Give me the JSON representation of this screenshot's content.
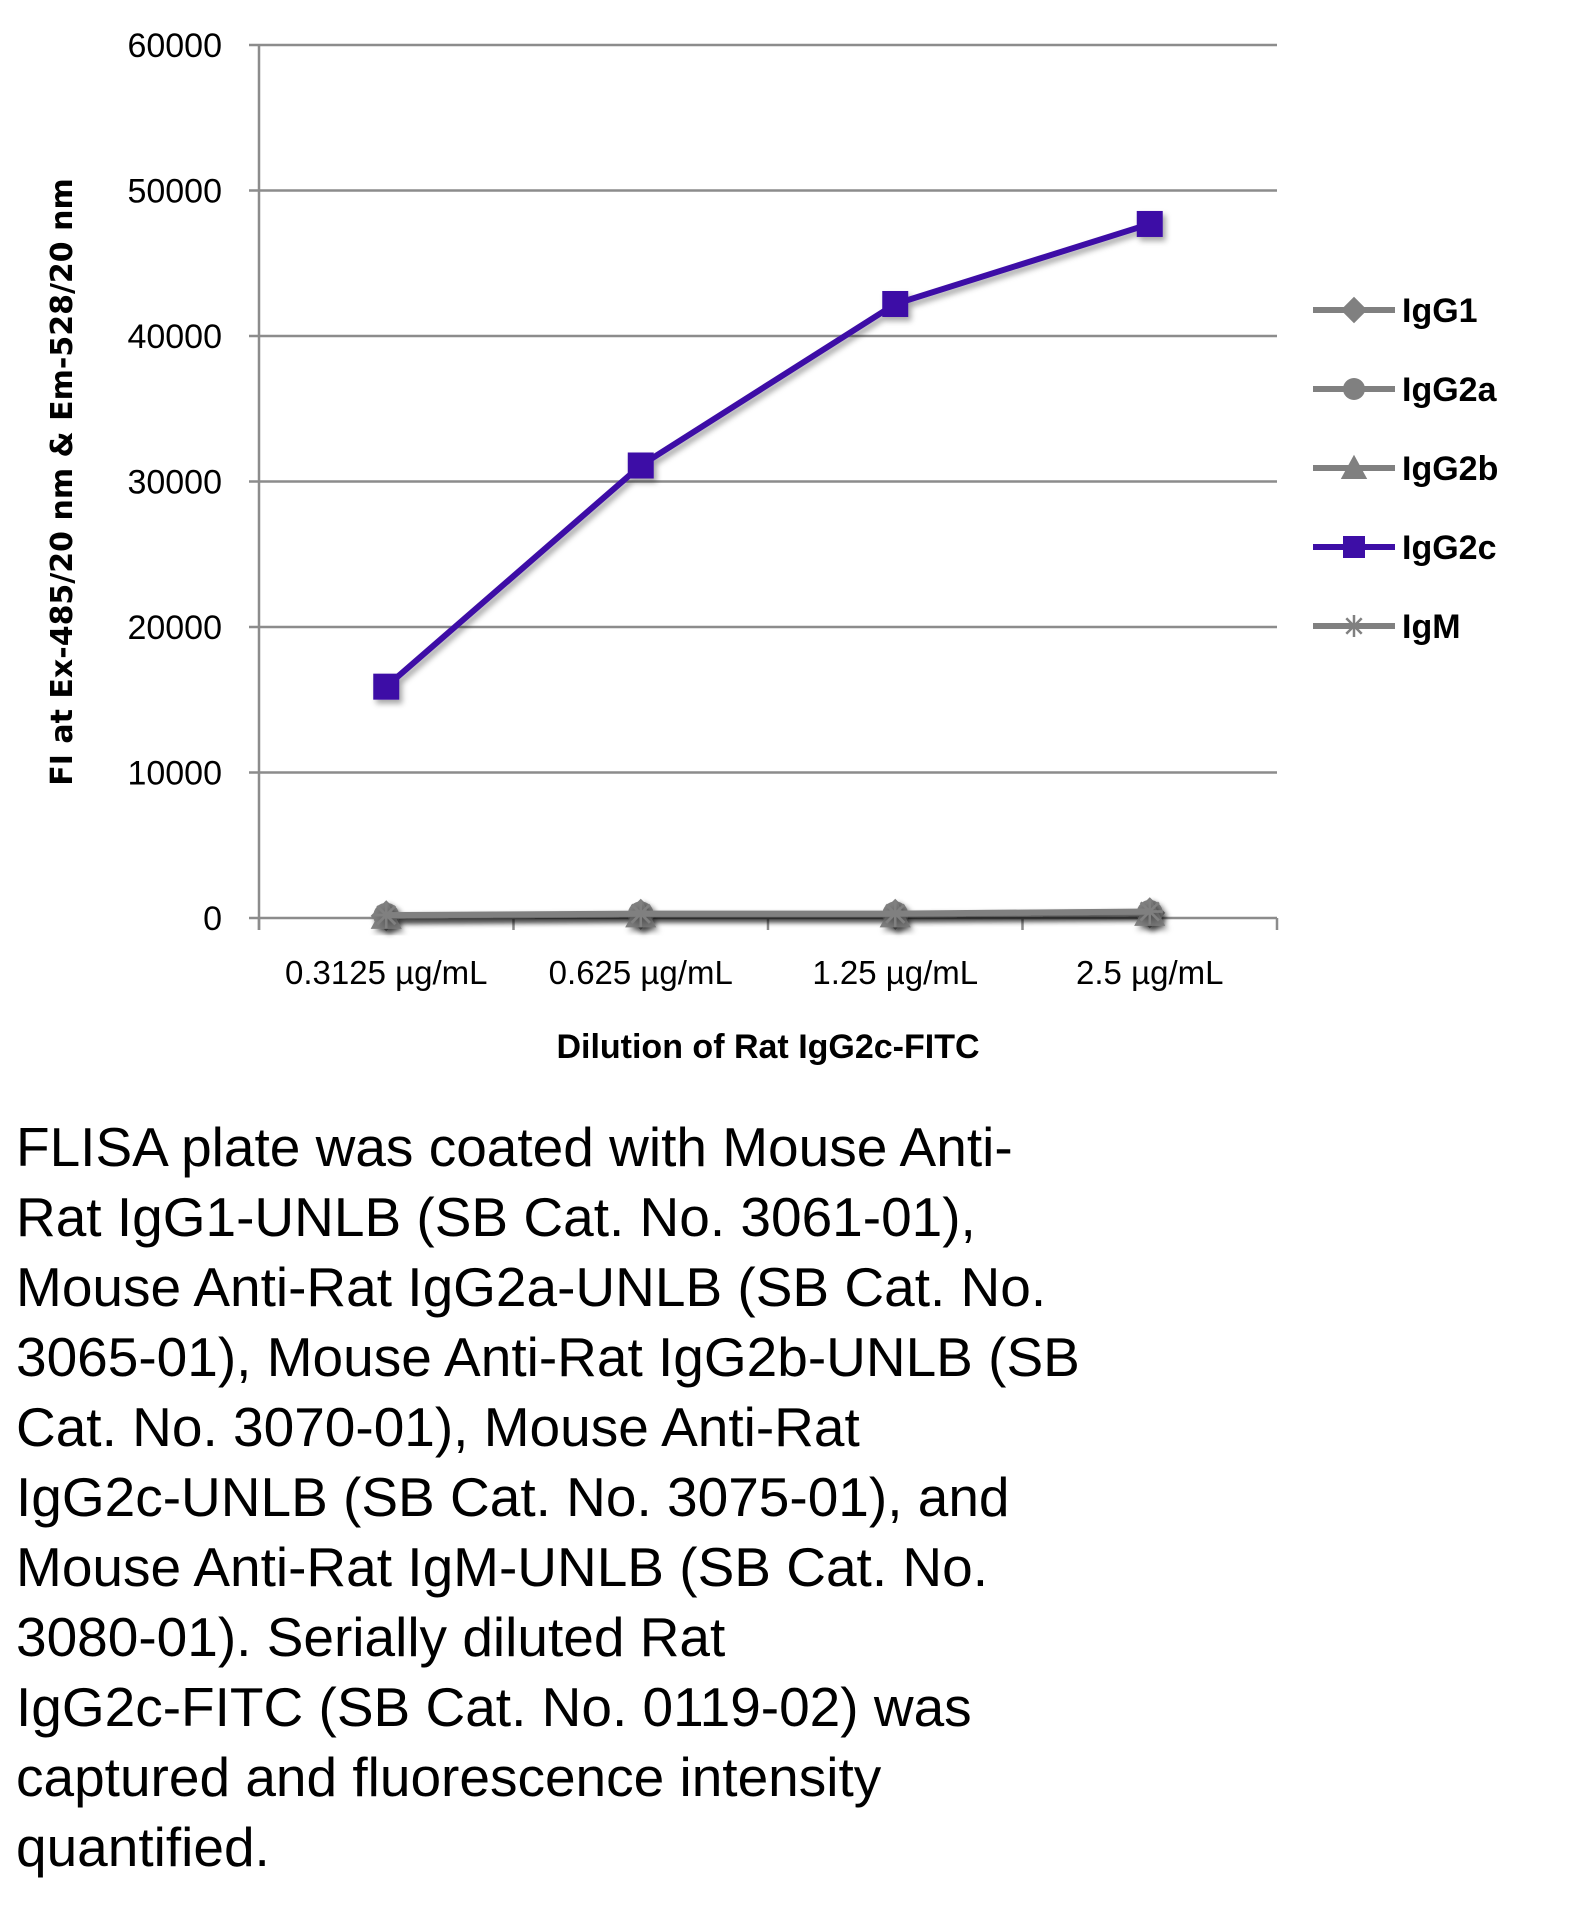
{
  "chart_data": {
    "type": "line",
    "title": "",
    "xlabel": "Dilution of Rat IgG2c-FITC",
    "ylabel": "FI at Ex-485/20 nm & Em-528/20 nm",
    "categories": [
      "0.3125 µg/mL",
      "0.625 µg/mL",
      "1.25 µg/mL",
      "2.5 µg/mL"
    ],
    "ylim": [
      0,
      60000
    ],
    "yticks": [
      0,
      10000,
      20000,
      30000,
      40000,
      50000,
      60000
    ],
    "grid": true,
    "legend_position": "right",
    "series": [
      {
        "name": "IgG1",
        "marker": "diamond",
        "color": "#808080",
        "values": [
          150,
          250,
          250,
          350
        ]
      },
      {
        "name": "IgG2a",
        "marker": "circle",
        "color": "#808080",
        "values": [
          150,
          250,
          250,
          350
        ]
      },
      {
        "name": "IgG2b",
        "marker": "triangle",
        "color": "#808080",
        "values": [
          150,
          250,
          250,
          350
        ]
      },
      {
        "name": "IgG2c",
        "marker": "square",
        "color": "#3d0ea6",
        "values": [
          15900,
          31100,
          42200,
          47700
        ]
      },
      {
        "name": "IgM",
        "marker": "star",
        "color": "#808080",
        "values": [
          200,
          300,
          300,
          450
        ]
      }
    ]
  },
  "caption_lines": [
    "FLISA plate was coated with Mouse Anti-",
    "Rat IgG1-UNLB (SB Cat. No. 3061-01),",
    "Mouse Anti-Rat IgG2a-UNLB (SB Cat. No.",
    "3065-01), Mouse Anti-Rat IgG2b-UNLB (SB",
    "Cat. No. 3070-01), Mouse Anti-Rat",
    "IgG2c-UNLB (SB Cat. No. 3075-01), and",
    "Mouse Anti-Rat IgM-UNLB (SB Cat. No.",
    "3080-01).  Serially diluted Rat",
    "IgG2c-FITC (SB Cat. No. 0119-02) was",
    "captured and fluorescence intensity",
    "quantified."
  ]
}
